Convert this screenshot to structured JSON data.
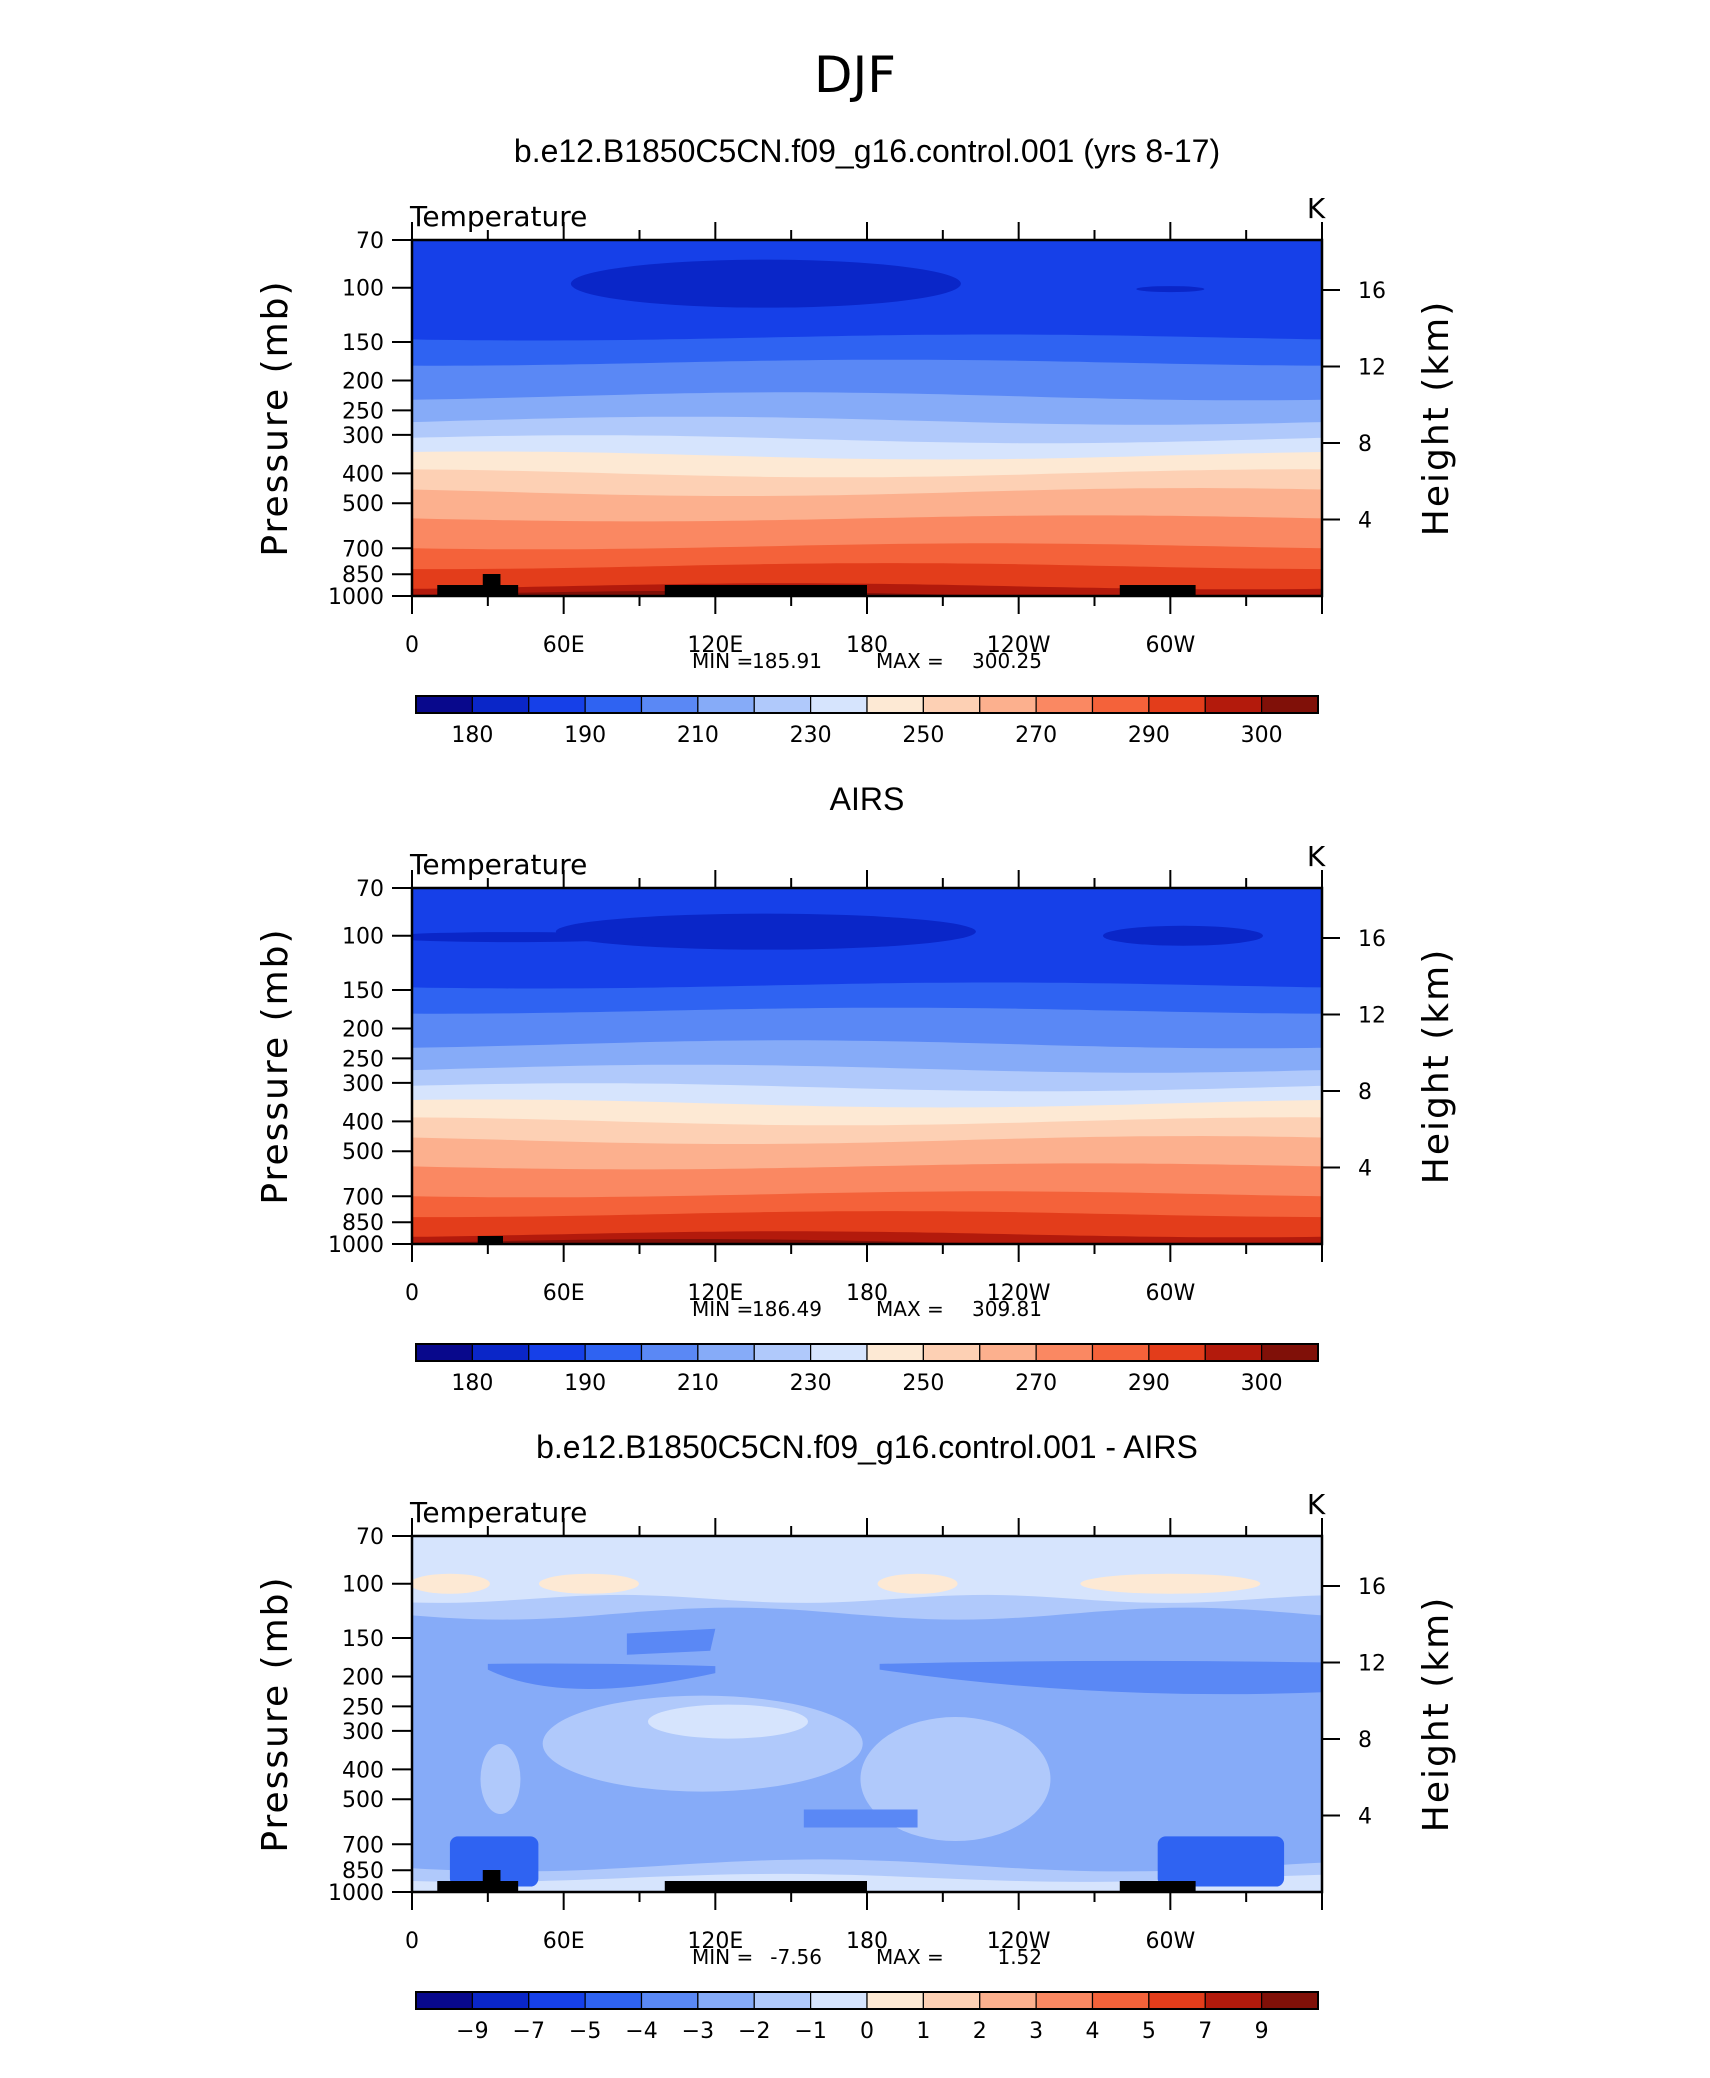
{
  "figure_title": "DJF",
  "colors": {
    "abs": [
      "#08088c",
      "#0a26c8",
      "#1640e8",
      "#2f63f2",
      "#5a88f5",
      "#86abf8",
      "#b0c9fb",
      "#d6e4fd",
      "#fde9d4",
      "#fdd0b4",
      "#fcb08e",
      "#fa8862",
      "#f4623a",
      "#e33d1b",
      "#b31a0c",
      "#801008"
    ],
    "diff": [
      "#08088c",
      "#0a26c8",
      "#1640e8",
      "#2f63f2",
      "#5a88f5",
      "#86abf8",
      "#b0c9fb",
      "#d6e4fd",
      "#fde9d4",
      "#fdd0b4",
      "#fcb08e",
      "#fa8862",
      "#f4623a",
      "#e33d1b",
      "#b31a0c",
      "#801008"
    ],
    "land": "#000000"
  },
  "chart_data": [
    {
      "type": "heatmap",
      "title": "b.e12.B1850C5CN.f09_g16.control.001 (yrs 8-17)",
      "variable": "Temperature",
      "units": "K",
      "ylabel": "Pressure (mb)",
      "ylabel_right": "Height (km)",
      "x_ticks": [
        "0",
        "60E",
        "120E",
        "180",
        "120W",
        "60W"
      ],
      "y_ticks": [
        "70",
        "100",
        "150",
        "200",
        "250",
        "300",
        "400",
        "500",
        "700",
        "850",
        "1000"
      ],
      "height_ticks": [
        "4",
        "8",
        "12",
        "16"
      ],
      "min_label": "MIN =",
      "min_value": "185.91",
      "max_label": "MAX =",
      "max_value": "300.25",
      "colorbar_labels": [
        "180",
        "190",
        "210",
        "230",
        "250",
        "270",
        "290",
        "300"
      ],
      "colorbar_type": "abs"
    },
    {
      "type": "heatmap",
      "title": "AIRS",
      "variable": "Temperature",
      "units": "K",
      "ylabel": "Pressure (mb)",
      "ylabel_right": "Height (km)",
      "x_ticks": [
        "0",
        "60E",
        "120E",
        "180",
        "120W",
        "60W"
      ],
      "y_ticks": [
        "70",
        "100",
        "150",
        "200",
        "250",
        "300",
        "400",
        "500",
        "700",
        "850",
        "1000"
      ],
      "height_ticks": [
        "4",
        "8",
        "12",
        "16"
      ],
      "min_label": "MIN =",
      "min_value": "186.49",
      "max_label": "MAX =",
      "max_value": "309.81",
      "colorbar_labels": [
        "180",
        "190",
        "210",
        "230",
        "250",
        "270",
        "290",
        "300"
      ],
      "colorbar_type": "abs"
    },
    {
      "type": "heatmap",
      "title": "b.e12.B1850C5CN.f09_g16.control.001 - AIRS",
      "variable": "Temperature",
      "units": "K",
      "ylabel": "Pressure (mb)",
      "ylabel_right": "Height (km)",
      "x_ticks": [
        "0",
        "60E",
        "120E",
        "180",
        "120W",
        "60W"
      ],
      "y_ticks": [
        "70",
        "100",
        "150",
        "200",
        "250",
        "300",
        "400",
        "500",
        "700",
        "850",
        "1000"
      ],
      "height_ticks": [
        "4",
        "8",
        "12",
        "16"
      ],
      "min_label": "MIN =",
      "min_value": "-7.56",
      "max_label": "MAX =",
      "max_value": "1.52",
      "colorbar_labels": [
        "−9",
        "−7",
        "−5",
        "−4",
        "−3",
        "−2",
        "−1",
        "0",
        "1",
        "2",
        "3",
        "4",
        "5",
        "7",
        "9"
      ],
      "colorbar_type": "diff"
    }
  ]
}
